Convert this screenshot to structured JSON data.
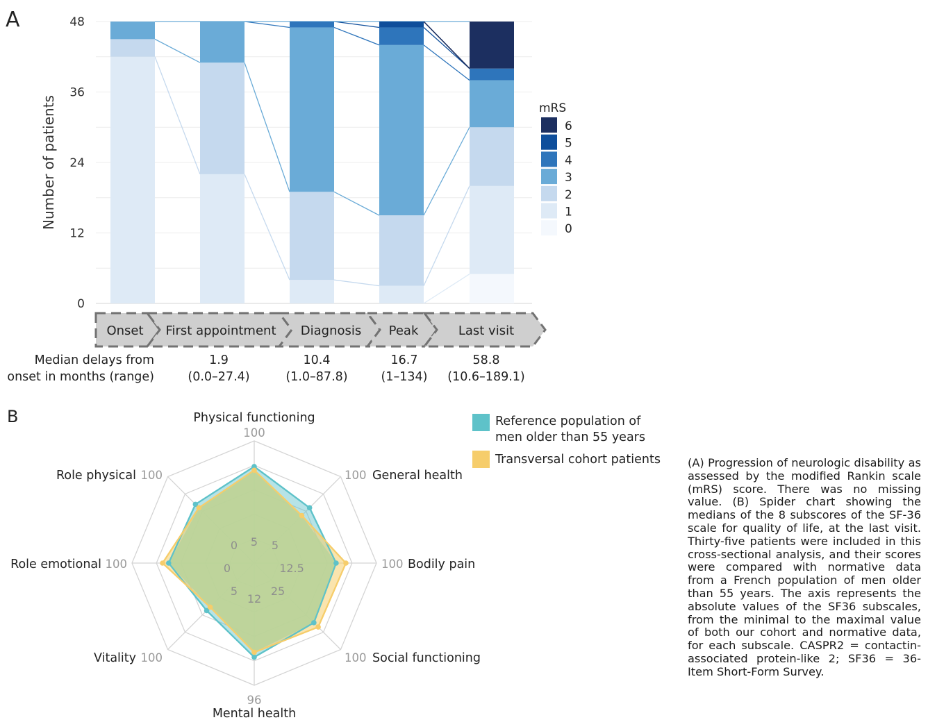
{
  "panel_a_label": "A",
  "panel_b_label": "B",
  "caption": "(A) Progression of neurologic disability as assessed by the modified Rankin scale (mRS) score. There was no missing value. (B) Spider chart showing the medians of the 8 subscores of the SF-36 scale for quality of life, at the last visit. Thirty-five patients were included in this cross-sectional analysis, and their scores were compared with normative data from a French population of men older than 55 years. The axis represents the absolute values of the SF36 subscales, from the minimal to the maximal value of both our cohort and normative data, for each subscale. CASPR2 = contactin-associated protein-like 2; SF36 = 36-Item Short-Form Survey.",
  "colors": {
    "mrs0": "#f4f8fd",
    "mrs1": "#deeaf6",
    "mrs2": "#c5d9ee",
    "mrs3": "#6aabd7",
    "mrs4": "#2e75bb",
    "mrs5": "#0e4e9b",
    "mrs6": "#1c2f60",
    "reference": "#5ec2c9",
    "cohort": "#f6cd6b",
    "overlap": "#b9d49a"
  },
  "timeline": {
    "stages": [
      "Onset",
      "First appointment",
      "Diagnosis",
      "Peak",
      "Last visit"
    ],
    "delay_header_line1": "Median delays from",
    "delay_header_line2": "onset in months (range)",
    "delays": [
      {
        "median": "1.9",
        "range": "(0.0–27.4)"
      },
      {
        "median": "10.4",
        "range": "(1.0–87.8)"
      },
      {
        "median": "16.7",
        "range": "(1–134)"
      },
      {
        "median": "58.8",
        "range": "(10.6–189.1)"
      }
    ]
  },
  "chart_data": [
    {
      "type": "bar",
      "stacked": true,
      "ylabel": "Number of patients",
      "ylim": [
        0,
        48
      ],
      "yticks": [
        "0",
        "12",
        "24",
        "36",
        "48"
      ],
      "grid": true,
      "categories": [
        "Onset",
        "First appointment",
        "Diagnosis",
        "Peak",
        "Last visit"
      ],
      "legend_title": "mRS",
      "legend_position": "right",
      "series": [
        {
          "name": "0",
          "values": [
            0,
            0,
            0,
            0,
            5
          ]
        },
        {
          "name": "1",
          "values": [
            42,
            22,
            4,
            3,
            15
          ]
        },
        {
          "name": "2",
          "values": [
            3,
            19,
            15,
            12,
            10
          ]
        },
        {
          "name": "3",
          "values": [
            3,
            7,
            28,
            29,
            8
          ]
        },
        {
          "name": "4",
          "values": [
            0,
            0,
            1,
            3,
            2
          ]
        },
        {
          "name": "5",
          "values": [
            0,
            0,
            0,
            1,
            0
          ]
        },
        {
          "name": "6",
          "values": [
            0,
            0,
            0,
            0,
            8
          ]
        }
      ]
    },
    {
      "type": "radar",
      "axes": [
        "Physical functioning",
        "General health",
        "Bodily pain",
        "Social functioning",
        "Mental health",
        "Vitality",
        "Role emotional",
        "Role physical"
      ],
      "axis_max_labels": [
        "100",
        "100",
        "100",
        "100",
        "96",
        "100",
        "100",
        "100"
      ],
      "axis_min_labels": [
        "5",
        "5",
        "12.5",
        "25",
        "12",
        "5",
        "0",
        "0"
      ],
      "series": [
        {
          "name": "Reference population of men older than 55 years",
          "values": [
            0.79,
            0.64,
            0.67,
            0.69,
            0.77,
            0.55,
            0.7,
            0.68
          ]
        },
        {
          "name": "Transversal cohort patients",
          "values": [
            0.76,
            0.55,
            0.75,
            0.74,
            0.73,
            0.51,
            0.75,
            0.64
          ]
        }
      ],
      "legend_position": "top-right"
    }
  ]
}
